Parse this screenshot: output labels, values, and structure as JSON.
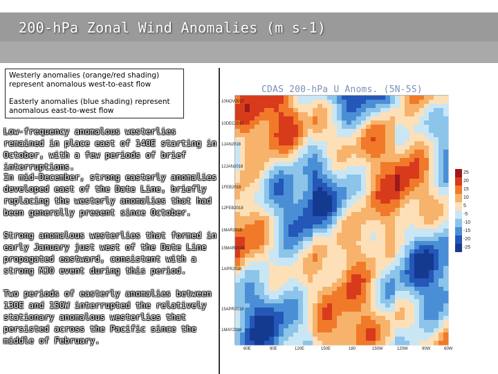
{
  "slide": {
    "title": "200-hPa Zonal Wind Anomalies (m s-1)"
  },
  "legend": {
    "westerly": "Westerly anomalies (orange/red shading) represent anomalous west-to-east flow",
    "easterly": "Easterly anomalies (blue shading) represent anomalous east-to-west flow"
  },
  "paragraphs": [
    "Low-frequency anomalous westerlies remained in place east of 140E starting in October, with a few periods of brief interruptions.",
    "In mid-December, strong easterly anomalies developed east of the Date Line, briefly replacing the westerly anomalies that had been generally present since October.",
    "Strong anomalous westerlies that formed in early January just west of the Date Line propagated eastward, consistent with a strong MJO event during this period.",
    "Two periods of easterly anomalies between 130E and 150W interrupted the relatively stationary anomalous westerlies that persisted across the Pacific since the middle of February."
  ],
  "figure": {
    "title": "CDAS 200-hPa U Anoms. (5N-5S)",
    "dates": [
      "10NOV2017",
      "10DEC2017",
      "1JAN2018",
      "12JAN2018",
      "1FEB2018",
      "12FEB2018",
      "1MAR2018",
      "15MAR2018",
      "1APR2018",
      "15APR2018",
      "1MAY2018"
    ],
    "longitudes": [
      "60E",
      "90E",
      "120E",
      "150E",
      "180",
      "150W",
      "120W",
      "90W",
      "60W"
    ],
    "colorbar": {
      "labels": [
        "25",
        "20",
        "15",
        "10",
        "5",
        "-5",
        "-10",
        "-15",
        "-20",
        "-25"
      ],
      "colors": [
        "#9e1a1a",
        "#d83b1c",
        "#f07a2a",
        "#f7b36b",
        "#fde0b8",
        "#c9e6f5",
        "#8cc4ea",
        "#4a8fd6",
        "#2457b8",
        "#143a8f"
      ]
    }
  }
}
